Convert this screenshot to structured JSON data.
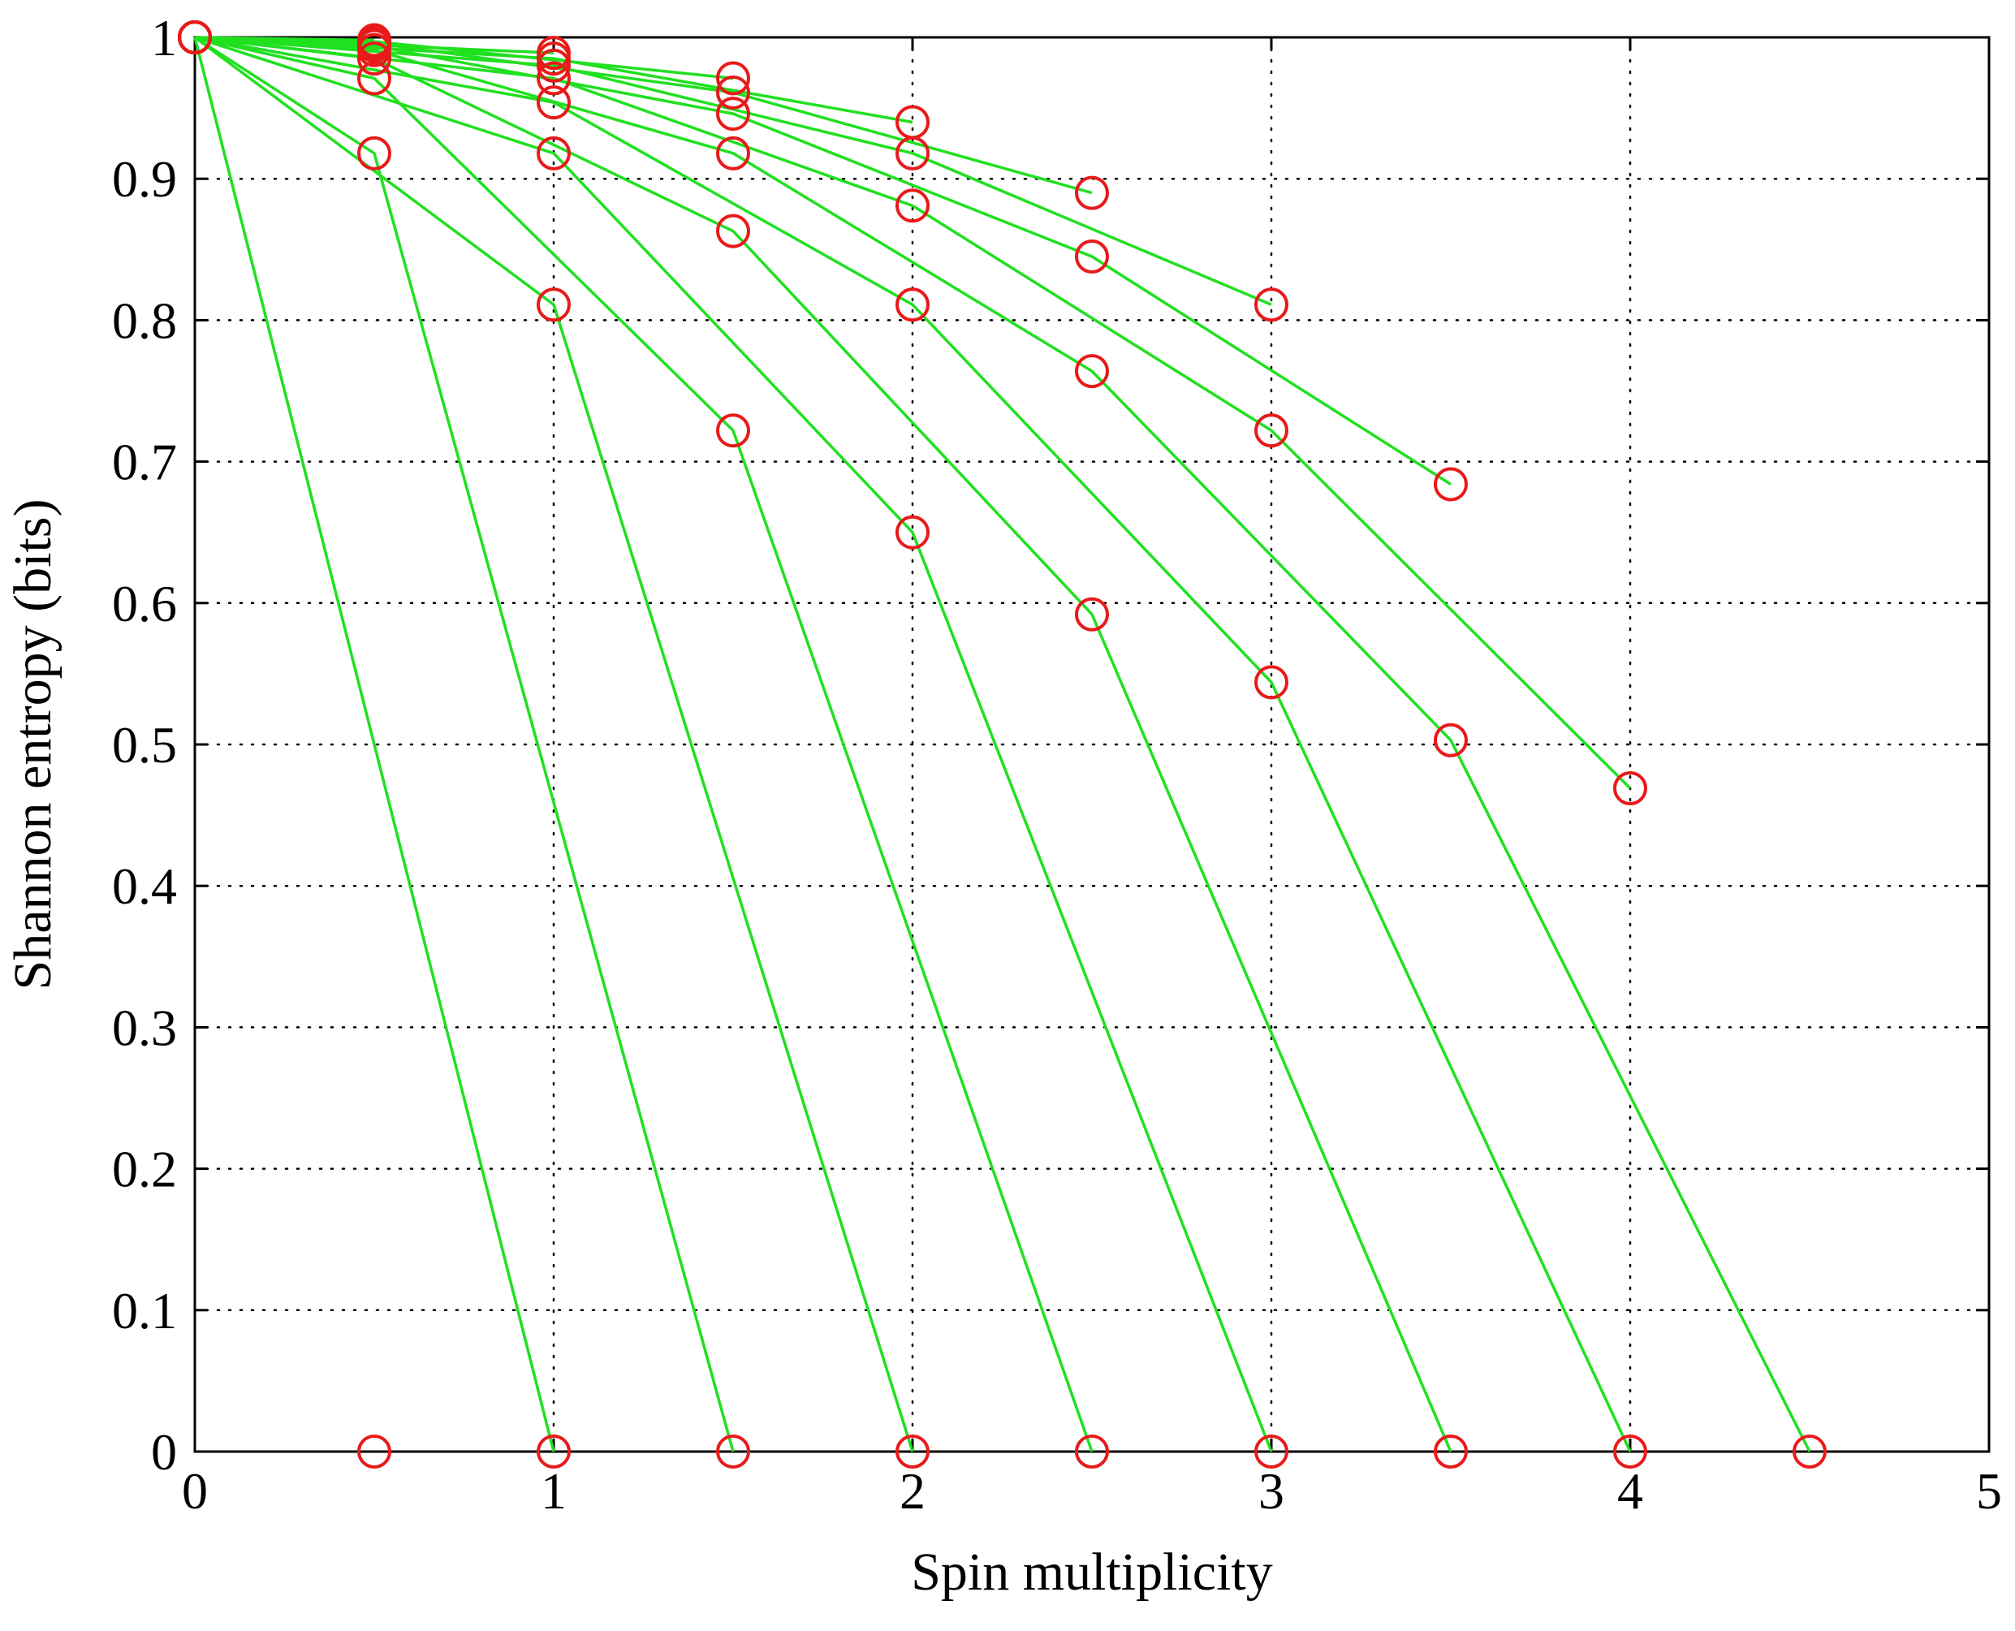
{
  "chart_data": {
    "type": "line",
    "title": "",
    "xlabel": "Spin multiplicity",
    "ylabel": "Shannon entropy (bits)",
    "xlim": [
      0,
      5
    ],
    "ylim": [
      0,
      1
    ],
    "xticks": [
      0,
      1,
      2,
      3,
      4,
      5
    ],
    "xtick_labels": [
      "0",
      "1",
      "2",
      "3",
      "4",
      "5"
    ],
    "yticks": [
      0,
      0.1,
      0.2,
      0.3,
      0.4,
      0.5,
      0.6,
      0.7,
      0.8,
      0.9,
      1
    ],
    "ytick_labels": [
      "0",
      "0.1",
      "0.2",
      "0.3",
      "0.4",
      "0.5",
      "0.6",
      "0.7",
      "0.8",
      "0.9",
      "1"
    ],
    "grid": true,
    "legend": "none",
    "line_color": "#20e020",
    "marker_color": "#e81a1a",
    "marker": "circle",
    "series": [
      {
        "x": [
          0,
          1
        ],
        "y": [
          1,
          0
        ]
      },
      {
        "x": [
          0,
          0.5,
          1.5
        ],
        "y": [
          1,
          0.918,
          0
        ]
      },
      {
        "x": [
          0,
          1,
          2
        ],
        "y": [
          1,
          0.811,
          0
        ]
      },
      {
        "x": [
          0,
          0.5,
          1.5,
          2.5
        ],
        "y": [
          1,
          0.971,
          0.722,
          0
        ]
      },
      {
        "x": [
          0,
          1,
          2,
          3
        ],
        "y": [
          1,
          0.918,
          0.65,
          0
        ]
      },
      {
        "x": [
          0,
          0.5,
          1.5,
          2.5,
          3.5
        ],
        "y": [
          1,
          0.985,
          0.863,
          0.592,
          0
        ]
      },
      {
        "x": [
          0,
          1,
          2,
          3,
          4
        ],
        "y": [
          1,
          0.954,
          0.811,
          0.544,
          0
        ]
      },
      {
        "x": [
          0,
          0.5,
          1.5,
          2.5,
          3.5,
          4.5
        ],
        "y": [
          1,
          0.991,
          0.918,
          0.764,
          0.503,
          0
        ]
      },
      {
        "x": [
          0,
          1,
          2,
          3,
          4
        ],
        "y": [
          1,
          0.971,
          0.881,
          0.722,
          0.469
        ]
      },
      {
        "x": [
          0,
          0.5,
          1.5,
          2.5,
          3.5
        ],
        "y": [
          1,
          0.994,
          0.946,
          0.845,
          0.684
        ]
      },
      {
        "x": [
          0,
          1,
          2,
          3
        ],
        "y": [
          1,
          0.98,
          0.918,
          0.811
        ]
      },
      {
        "x": [
          0,
          0.5,
          1.5,
          2.5
        ],
        "y": [
          1,
          0.996,
          0.961,
          0.89
        ]
      },
      {
        "x": [
          0,
          1,
          2
        ],
        "y": [
          1,
          0.985,
          0.94
        ]
      },
      {
        "x": [
          0,
          0.5,
          1.5
        ],
        "y": [
          1,
          0.997,
          0.971
        ]
      },
      {
        "x": [
          0,
          1
        ],
        "y": [
          1,
          0.989
        ]
      },
      {
        "x": [
          0,
          0.5
        ],
        "y": [
          1,
          0.998
        ]
      },
      {
        "x": [
          0.5
        ],
        "y": [
          0
        ]
      }
    ]
  }
}
